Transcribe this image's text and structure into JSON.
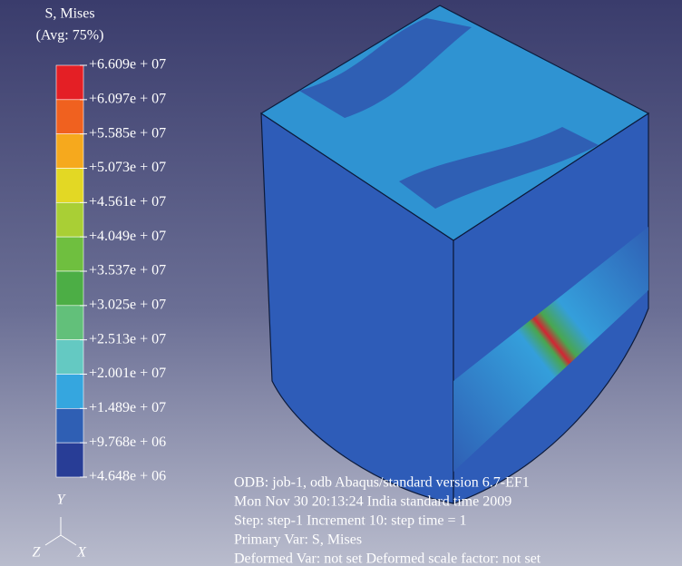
{
  "legend": {
    "title": "S, Mises",
    "subtitle": "(Avg: 75%)",
    "labels": [
      "+6.609e + 07",
      "+6.097e + 07",
      "+5.585e + 07",
      "+5.073e + 07",
      "+4.561e + 07",
      "+4.049e + 07",
      "+3.537e + 07",
      "+3.025e + 07",
      "+2.513e + 07",
      "+2.001e + 07",
      "+1.489e + 07",
      "+9.768e + 06",
      "+4.648e + 06"
    ],
    "colors": [
      "#e41f25",
      "#f0611f",
      "#f6a91d",
      "#e3d824",
      "#a9cf35",
      "#6fbf3f",
      "#4cae45",
      "#62c07a",
      "#64c9c2",
      "#35a6df",
      "#2f5fb4",
      "#283d96"
    ]
  },
  "triad": {
    "y": "Y",
    "z": "Z",
    "x": "X"
  },
  "info": [
    "ODB: job-1, odb   Abaqus/standard version 6.7-EF1",
    "Mon Nov 30 20:13:24 India standard time 2009",
    "Step: step-1    Increment  10: step time = 1",
    "Primary Var: S, Mises",
    "Deformed Var: not set  Deformed scale factor: not set"
  ]
}
